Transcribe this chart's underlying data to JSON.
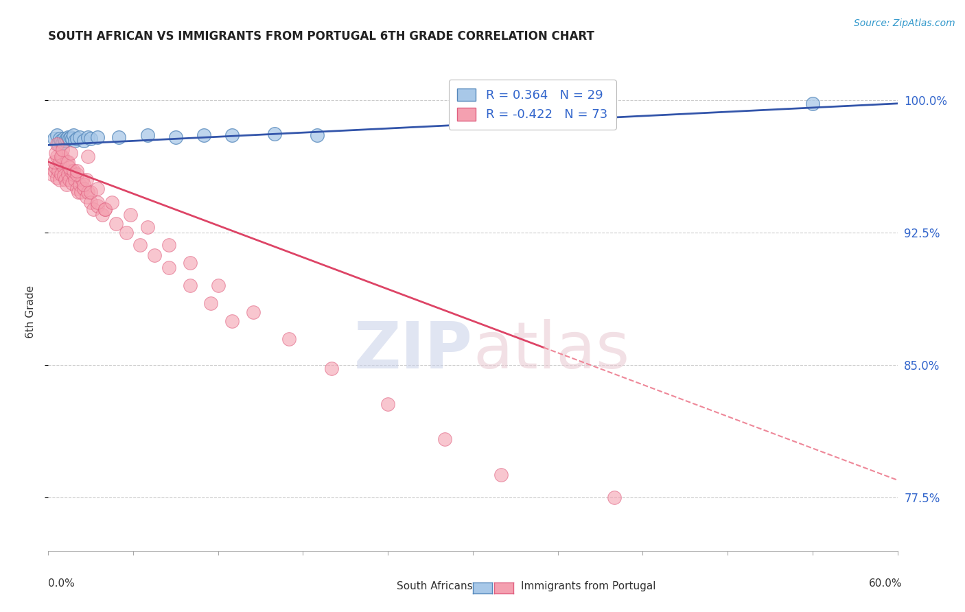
{
  "title": "SOUTH AFRICAN VS IMMIGRANTS FROM PORTUGAL 6TH GRADE CORRELATION CHART",
  "source": "Source: ZipAtlas.com",
  "ylabel": "6th Grade",
  "y_ticks": [
    0.775,
    0.85,
    0.925,
    1.0
  ],
  "y_tick_labels": [
    "77.5%",
    "85.0%",
    "92.5%",
    "100.0%"
  ],
  "xlim": [
    0.0,
    0.6
  ],
  "ylim": [
    0.745,
    1.015
  ],
  "blue_R": 0.364,
  "blue_N": 29,
  "pink_R": -0.422,
  "pink_N": 73,
  "blue_color": "#A8C8E8",
  "pink_color": "#F4A0B0",
  "blue_edge_color": "#5588BB",
  "pink_edge_color": "#E06080",
  "blue_line_color": "#3355AA",
  "pink_line_color": "#DD4466",
  "pink_dash_color": "#EE8899",
  "legend_label_blue": "South Africans",
  "legend_label_pink": "Immigrants from Portugal",
  "watermark_zip": "ZIP",
  "watermark_atlas": "atlas",
  "blue_scatter_x": [
    0.004,
    0.006,
    0.007,
    0.008,
    0.009,
    0.01,
    0.011,
    0.012,
    0.013,
    0.014,
    0.015,
    0.016,
    0.017,
    0.018,
    0.019,
    0.02,
    0.022,
    0.025,
    0.028,
    0.03,
    0.035,
    0.05,
    0.07,
    0.09,
    0.11,
    0.13,
    0.16,
    0.19,
    0.54
  ],
  "blue_scatter_y": [
    0.978,
    0.98,
    0.975,
    0.978,
    0.977,
    0.976,
    0.978,
    0.977,
    0.978,
    0.979,
    0.978,
    0.979,
    0.978,
    0.98,
    0.977,
    0.978,
    0.979,
    0.977,
    0.979,
    0.978,
    0.979,
    0.979,
    0.98,
    0.979,
    0.98,
    0.98,
    0.981,
    0.98,
    0.998
  ],
  "pink_scatter_x": [
    0.003,
    0.004,
    0.005,
    0.006,
    0.007,
    0.008,
    0.009,
    0.01,
    0.011,
    0.012,
    0.013,
    0.014,
    0.015,
    0.016,
    0.017,
    0.018,
    0.019,
    0.02,
    0.021,
    0.022,
    0.023,
    0.024,
    0.025,
    0.027,
    0.028,
    0.03,
    0.032,
    0.035,
    0.038,
    0.04,
    0.004,
    0.006,
    0.008,
    0.01,
    0.013,
    0.015,
    0.018,
    0.02,
    0.025,
    0.03,
    0.035,
    0.04,
    0.048,
    0.055,
    0.065,
    0.075,
    0.085,
    0.1,
    0.115,
    0.13,
    0.005,
    0.009,
    0.014,
    0.02,
    0.027,
    0.035,
    0.045,
    0.058,
    0.07,
    0.085,
    0.1,
    0.12,
    0.145,
    0.17,
    0.2,
    0.24,
    0.28,
    0.32,
    0.006,
    0.01,
    0.016,
    0.028,
    0.4
  ],
  "pink_scatter_y": [
    0.958,
    0.96,
    0.962,
    0.956,
    0.96,
    0.955,
    0.958,
    0.963,
    0.957,
    0.955,
    0.952,
    0.958,
    0.955,
    0.96,
    0.953,
    0.958,
    0.955,
    0.95,
    0.948,
    0.952,
    0.948,
    0.955,
    0.95,
    0.945,
    0.948,
    0.942,
    0.938,
    0.94,
    0.935,
    0.938,
    0.965,
    0.968,
    0.965,
    0.968,
    0.965,
    0.962,
    0.96,
    0.958,
    0.952,
    0.948,
    0.942,
    0.938,
    0.93,
    0.925,
    0.918,
    0.912,
    0.905,
    0.895,
    0.885,
    0.875,
    0.97,
    0.968,
    0.965,
    0.96,
    0.955,
    0.95,
    0.942,
    0.935,
    0.928,
    0.918,
    0.908,
    0.895,
    0.88,
    0.865,
    0.848,
    0.828,
    0.808,
    0.788,
    0.975,
    0.972,
    0.97,
    0.968,
    0.775
  ]
}
